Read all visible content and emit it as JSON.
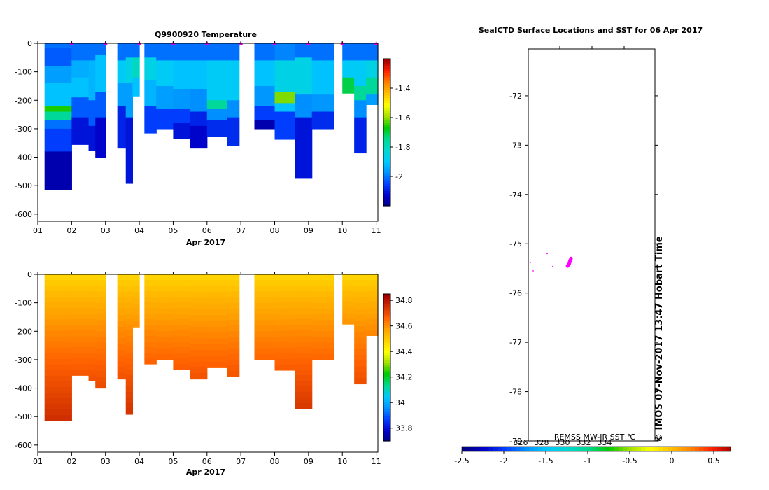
{
  "colors": {
    "temp_scale": [
      "#000080",
      "#0000c8",
      "#0040ff",
      "#0090ff",
      "#00c8ff",
      "#00d8d0",
      "#00d890",
      "#00c800",
      "#a0e000",
      "#ffff00",
      "#ffc000",
      "#ff8000",
      "#ff2000",
      "#a00000"
    ],
    "sal_scale": [
      "#000080",
      "#0000c8",
      "#0040ff",
      "#0090ff",
      "#00c8ff",
      "#00d890",
      "#00c800",
      "#a0e000",
      "#ffff00",
      "#ffd000",
      "#ffa000",
      "#ff6000",
      "#d03000",
      "#a00000"
    ],
    "marker": "#e000e0",
    "track": "#ff00ff"
  },
  "chart_data": [
    {
      "type": "heatmap",
      "id": "temperature",
      "title": "Q9900920  Temperature",
      "xlabel": "Apr 2017",
      "ylabel": "",
      "xlim": [
        1,
        11.05
      ],
      "ylim": [
        -625,
        0
      ],
      "xticks": [
        "01",
        "02",
        "03",
        "04",
        "05",
        "06",
        "07",
        "08",
        "09",
        "10",
        "11"
      ],
      "yticks": [
        0,
        -100,
        -200,
        -300,
        -400,
        -500,
        -600
      ],
      "colorbar": {
        "min": -2.2,
        "max": -1.2,
        "ticks": [
          -1.4,
          -1.6,
          -1.8,
          -2
        ]
      },
      "marker_times": [
        2,
        3,
        4,
        5,
        6,
        7,
        8,
        9,
        10,
        11
      ],
      "profiles": [
        {
          "t": 1.2,
          "w": 0.8,
          "depth": 515,
          "bands": [
            [
              0,
              15,
              -2.0
            ],
            [
              15,
              80,
              -2.02
            ],
            [
              80,
              140,
              -1.95
            ],
            [
              140,
              220,
              -1.9
            ],
            [
              220,
              240,
              -1.65
            ],
            [
              240,
              270,
              -1.75
            ],
            [
              270,
              300,
              -2.0
            ],
            [
              300,
              380,
              -2.05
            ],
            [
              380,
              515,
              -2.15
            ]
          ]
        },
        {
          "t": 2.0,
          "w": 0.5,
          "depth": 355,
          "bands": [
            [
              0,
              60,
              -2.0
            ],
            [
              60,
              120,
              -1.93
            ],
            [
              120,
              190,
              -1.9
            ],
            [
              190,
              260,
              -2.02
            ],
            [
              260,
              355,
              -2.1
            ]
          ]
        },
        {
          "t": 2.5,
          "w": 0.2,
          "depth": 375,
          "bands": [
            [
              0,
              60,
              -2.0
            ],
            [
              60,
              200,
              -1.92
            ],
            [
              200,
              290,
              -2.02
            ],
            [
              290,
              375,
              -2.1
            ]
          ]
        },
        {
          "t": 2.7,
          "w": 0.3,
          "depth": 400,
          "bands": [
            [
              0,
              40,
              -2.0
            ],
            [
              40,
              170,
              -1.9
            ],
            [
              170,
              260,
              -2.02
            ],
            [
              260,
              400,
              -2.12
            ]
          ]
        },
        {
          "t": 3.35,
          "w": 0.25,
          "depth": 368,
          "bands": [
            [
              0,
              60,
              -2.0
            ],
            [
              60,
              140,
              -1.88
            ],
            [
              140,
              220,
              -1.95
            ],
            [
              220,
              368,
              -2.08
            ]
          ]
        },
        {
          "t": 3.6,
          "w": 0.2,
          "depth": 492,
          "bands": [
            [
              0,
              50,
              -2.0
            ],
            [
              50,
              140,
              -1.85
            ],
            [
              140,
              260,
              -1.95
            ],
            [
              260,
              492,
              -2.1
            ]
          ]
        },
        {
          "t": 3.8,
          "w": 0.2,
          "depth": 185,
          "bands": [
            [
              0,
              50,
              -2.0
            ],
            [
              50,
              120,
              -1.8
            ],
            [
              120,
              185,
              -1.9
            ]
          ]
        },
        {
          "t": 4.15,
          "w": 0.35,
          "depth": 315,
          "bands": [
            [
              0,
              50,
              -2.0
            ],
            [
              50,
              130,
              -1.85
            ],
            [
              130,
              220,
              -1.92
            ],
            [
              220,
              315,
              -2.05
            ]
          ]
        },
        {
          "t": 4.5,
          "w": 0.5,
          "depth": 300,
          "bands": [
            [
              0,
              60,
              -2.0
            ],
            [
              60,
              150,
              -1.88
            ],
            [
              150,
              230,
              -1.95
            ],
            [
              230,
              300,
              -2.05
            ]
          ]
        },
        {
          "t": 5.0,
          "w": 0.5,
          "depth": 335,
          "bands": [
            [
              0,
              60,
              -2.0
            ],
            [
              60,
              160,
              -1.9
            ],
            [
              160,
              230,
              -1.96
            ],
            [
              230,
              280,
              -2.05
            ],
            [
              280,
              335,
              -2.1
            ]
          ]
        },
        {
          "t": 5.5,
          "w": 0.5,
          "depth": 368,
          "bands": [
            [
              0,
              60,
              -2.0
            ],
            [
              60,
              160,
              -1.9
            ],
            [
              160,
              240,
              -1.97
            ],
            [
              240,
              290,
              -2.08
            ],
            [
              290,
              368,
              -2.12
            ]
          ]
        },
        {
          "t": 6.0,
          "w": 0.6,
          "depth": 328,
          "bands": [
            [
              0,
              60,
              -2.0
            ],
            [
              60,
              200,
              -1.88
            ],
            [
              200,
              230,
              -1.75
            ],
            [
              230,
              270,
              -1.97
            ],
            [
              270,
              328,
              -2.07
            ]
          ]
        },
        {
          "t": 6.6,
          "w": 0.35,
          "depth": 360,
          "bands": [
            [
              0,
              60,
              -2.0
            ],
            [
              60,
              200,
              -1.88
            ],
            [
              200,
              260,
              -1.97
            ],
            [
              260,
              360,
              -2.07
            ]
          ]
        },
        {
          "t": 7.4,
          "w": 0.6,
          "depth": 300,
          "bands": [
            [
              0,
              60,
              -2.0
            ],
            [
              60,
              150,
              -1.9
            ],
            [
              150,
              220,
              -1.96
            ],
            [
              220,
              270,
              -2.05
            ],
            [
              270,
              300,
              -2.15
            ]
          ]
        },
        {
          "t": 8.0,
          "w": 0.6,
          "depth": 337,
          "bands": [
            [
              0,
              60,
              -1.98
            ],
            [
              60,
              170,
              -1.85
            ],
            [
              170,
              210,
              -1.6
            ],
            [
              210,
              240,
              -1.9
            ],
            [
              240,
              337,
              -2.05
            ]
          ]
        },
        {
          "t": 8.6,
          "w": 0.5,
          "depth": 472,
          "bands": [
            [
              0,
              50,
              -2.0
            ],
            [
              50,
              180,
              -1.85
            ],
            [
              180,
              260,
              -1.97
            ],
            [
              260,
              472,
              -2.1
            ]
          ]
        },
        {
          "t": 9.1,
          "w": 0.65,
          "depth": 300,
          "bands": [
            [
              0,
              60,
              -2.0
            ],
            [
              60,
              180,
              -1.9
            ],
            [
              180,
              240,
              -1.96
            ],
            [
              240,
              300,
              -2.07
            ]
          ]
        },
        {
          "t": 10.0,
          "w": 0.35,
          "depth": 175,
          "bands": [
            [
              0,
              60,
              -2.0
            ],
            [
              60,
              120,
              -1.88
            ],
            [
              120,
              175,
              -1.7
            ]
          ]
        },
        {
          "t": 10.35,
          "w": 0.35,
          "depth": 385,
          "bands": [
            [
              0,
              60,
              -2.0
            ],
            [
              60,
              150,
              -1.88
            ],
            [
              150,
              200,
              -1.75
            ],
            [
              200,
              260,
              -1.97
            ],
            [
              260,
              385,
              -2.08
            ]
          ]
        },
        {
          "t": 10.7,
          "w": 0.35,
          "depth": 215,
          "bands": [
            [
              0,
              60,
              -2.0
            ],
            [
              60,
              120,
              -1.85
            ],
            [
              120,
              180,
              -1.75
            ],
            [
              180,
              215,
              -1.95
            ]
          ]
        }
      ]
    },
    {
      "type": "heatmap",
      "id": "salinity",
      "title": "",
      "xlabel": "Apr 2017",
      "ylabel": "",
      "xlim": [
        1,
        11.05
      ],
      "ylim": [
        -625,
        0
      ],
      "xticks": [
        "01",
        "02",
        "03",
        "04",
        "05",
        "06",
        "07",
        "08",
        "09",
        "10",
        "11"
      ],
      "yticks": [
        0,
        -100,
        -200,
        -300,
        -400,
        -500,
        -600
      ],
      "colorbar": {
        "min": 33.7,
        "max": 34.85,
        "ticks": [
          34.8,
          34.6,
          34.4,
          34.2,
          34,
          33.8
        ]
      },
      "surface": 34.48,
      "bottom_max": 34.77,
      "profiles_ref": "temperature"
    },
    {
      "type": "scatter",
      "id": "map",
      "title": "SealCTD Surface Locations and SST for 06 Apr 2017",
      "xlabel": "",
      "ylabel": "",
      "ylim": [
        -79,
        -71.05
      ],
      "yticks": [
        "-72",
        "-73",
        "-74",
        "-75",
        "-76",
        "-77",
        "-78",
        "-79"
      ],
      "ytick_values": [
        -72,
        -73,
        -74,
        -75,
        -76,
        -77,
        -78,
        -79
      ],
      "points_lat": [
        -75.3,
        -75.32,
        -75.34,
        -75.36,
        -75.38,
        -75.4,
        -75.42,
        -75.44,
        -75.45
      ],
      "points_lon_offset": [
        0.1,
        0.09,
        0.07,
        0.06,
        0.05,
        0.04,
        0.02,
        0.0,
        -0.02
      ],
      "sparse_lat": [
        -75.2,
        -75.38,
        -75.46,
        -75.55
      ],
      "sparse_lon_offset": [
        -0.8,
        -1.4,
        -0.6,
        -1.3
      ],
      "colorbar": {
        "label": "REMSS MW-IR SST ℃",
        "min": -2.5,
        "max": 0.7,
        "ticks": [
          "-2.5",
          "-2",
          "-1.5",
          "-1",
          "-0.5",
          "0",
          "0.5"
        ],
        "tick_values": [
          -2.5,
          -2,
          -1.5,
          -1,
          -0.5,
          0,
          0.5
        ],
        "overlay_ticks": [
          "326",
          "328",
          "330",
          "332",
          "334"
        ],
        "overlay_values": [
          -1.8,
          -1.55,
          -1.3,
          -1.05,
          -0.8
        ]
      }
    }
  ],
  "credit": "©  IMOS 07-Nov-2017 13:47 Hobart Time"
}
